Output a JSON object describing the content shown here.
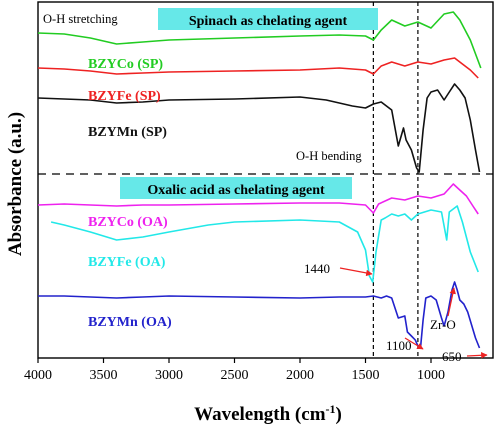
{
  "chart_data": {
    "type": "line",
    "xlabel": "Wavelength (cm",
    "xlabel_sup": "-1",
    "xlabel_close": ")",
    "ylabel": "Absorbance (a.u.)",
    "x_ticks": [
      4000,
      3500,
      3000,
      2500,
      2000,
      1500,
      1000
    ],
    "xlim": [
      4000,
      600
    ],
    "x_reversed": true,
    "panels": [
      {
        "title": "Spinach as chelating agent",
        "title_bg": "#66e8e8",
        "series": [
          {
            "name": "BZYCo (SP)",
            "color": "#22cc22",
            "points": [
              [
                4000,
                33
              ],
              [
                3800,
                34
              ],
              [
                3600,
                38
              ],
              [
                3400,
                44
              ],
              [
                3200,
                42
              ],
              [
                3000,
                40
              ],
              [
                2500,
                38
              ],
              [
                2000,
                36
              ],
              [
                1700,
                35
              ],
              [
                1500,
                36
              ],
              [
                1440,
                40
              ],
              [
                1380,
                30
              ],
              [
                1300,
                20
              ],
              [
                1200,
                26
              ],
              [
                1100,
                22
              ],
              [
                1000,
                28
              ],
              [
                900,
                14
              ],
              [
                830,
                12
              ],
              [
                780,
                20
              ],
              [
                700,
                40
              ],
              [
                620,
                68
              ]
            ]
          },
          {
            "name": "BZYFe (SP)",
            "color": "#ee2222",
            "points": [
              [
                4000,
                68
              ],
              [
                3800,
                69
              ],
              [
                3600,
                71
              ],
              [
                3400,
                74
              ],
              [
                3200,
                73
              ],
              [
                3000,
                72
              ],
              [
                2500,
                71
              ],
              [
                2000,
                70
              ],
              [
                1700,
                68
              ],
              [
                1500,
                70
              ],
              [
                1440,
                74
              ],
              [
                1380,
                66
              ],
              [
                1300,
                62
              ],
              [
                1200,
                66
              ],
              [
                1100,
                62
              ],
              [
                1000,
                64
              ],
              [
                900,
                60
              ],
              [
                820,
                58
              ],
              [
                760,
                64
              ],
              [
                700,
                70
              ],
              [
                640,
                78
              ]
            ]
          },
          {
            "name": "BZYMn (SP)",
            "color": "#111111",
            "points": [
              [
                4000,
                98
              ],
              [
                3800,
                99
              ],
              [
                3600,
                100
              ],
              [
                3400,
                103
              ],
              [
                3200,
                102
              ],
              [
                3000,
                100
              ],
              [
                2500,
                99
              ],
              [
                2000,
                97
              ],
              [
                1800,
                100
              ],
              [
                1600,
                106
              ],
              [
                1500,
                108
              ],
              [
                1440,
                104
              ],
              [
                1380,
                102
              ],
              [
                1300,
                110
              ],
              [
                1250,
                146
              ],
              [
                1210,
                128
              ],
              [
                1190,
                140
              ],
              [
                1150,
                150
              ],
              [
                1110,
                168
              ],
              [
                1090,
                172
              ],
              [
                1060,
                130
              ],
              [
                1030,
                98
              ],
              [
                1000,
                92
              ],
              [
                950,
                90
              ],
              [
                900,
                100
              ],
              [
                860,
                92
              ],
              [
                820,
                84
              ],
              [
                780,
                90
              ],
              [
                740,
                98
              ],
              [
                700,
                120
              ],
              [
                660,
                150
              ],
              [
                630,
                172
              ]
            ]
          }
        ]
      },
      {
        "title": "Oxalic acid as chelating agent",
        "title_bg": "#66e8e8",
        "series": [
          {
            "name": "BZYCo (OA)",
            "color": "#ee22ee",
            "points": [
              [
                4000,
                205
              ],
              [
                3800,
                204
              ],
              [
                3600,
                205
              ],
              [
                3400,
                206
              ],
              [
                3200,
                205
              ],
              [
                3000,
                205
              ],
              [
                2500,
                204
              ],
              [
                2000,
                203
              ],
              [
                1700,
                203
              ],
              [
                1500,
                205
              ],
              [
                1440,
                213
              ],
              [
                1400,
                204
              ],
              [
                1300,
                198
              ],
              [
                1200,
                200
              ],
              [
                1100,
                196
              ],
              [
                1000,
                198
              ],
              [
                900,
                194
              ],
              [
                830,
                184
              ],
              [
                780,
                190
              ],
              [
                730,
                196
              ],
              [
                680,
                206
              ],
              [
                640,
                214
              ]
            ]
          },
          {
            "name": "BZYFe (OA)",
            "color": "#22e8e8",
            "points": [
              [
                3900,
                222
              ],
              [
                3800,
                225
              ],
              [
                3600,
                232
              ],
              [
                3400,
                240
              ],
              [
                3200,
                237
              ],
              [
                3000,
                232
              ],
              [
                2700,
                225
              ],
              [
                2500,
                222
              ],
              [
                2000,
                220
              ],
              [
                1700,
                222
              ],
              [
                1560,
                232
              ],
              [
                1500,
                250
              ],
              [
                1470,
                276
              ],
              [
                1445,
                282
              ],
              [
                1420,
                252
              ],
              [
                1380,
                220
              ],
              [
                1350,
                218
              ],
              [
                1300,
                214
              ],
              [
                1250,
                216
              ],
              [
                1200,
                214
              ],
              [
                1150,
                220
              ],
              [
                1100,
                214
              ],
              [
                1000,
                210
              ],
              [
                920,
                212
              ],
              [
                880,
                240
              ],
              [
                860,
                212
              ],
              [
                800,
                206
              ],
              [
                760,
                222
              ],
              [
                700,
                252
              ],
              [
                640,
                272
              ]
            ]
          },
          {
            "name": "BZYMn (OA)",
            "color": "#2222cc",
            "points": [
              [
                4000,
                296
              ],
              [
                3800,
                296
              ],
              [
                3600,
                297
              ],
              [
                3400,
                298
              ],
              [
                3200,
                297
              ],
              [
                3000,
                296
              ],
              [
                2500,
                297
              ],
              [
                2000,
                298
              ],
              [
                1700,
                297
              ],
              [
                1500,
                297
              ],
              [
                1440,
                296
              ],
              [
                1380,
                298
              ],
              [
                1340,
                296
              ],
              [
                1300,
                298
              ],
              [
                1250,
                318
              ],
              [
                1200,
                316
              ],
              [
                1180,
                332
              ],
              [
                1150,
                336
              ],
              [
                1120,
                340
              ],
              [
                1100,
                346
              ],
              [
                1080,
                348
              ],
              [
                1060,
                320
              ],
              [
                1040,
                298
              ],
              [
                1000,
                296
              ],
              [
                960,
                300
              ],
              [
                920,
                318
              ],
              [
                900,
                326
              ],
              [
                870,
                312
              ],
              [
                840,
                290
              ],
              [
                820,
                282
              ],
              [
                800,
                290
              ],
              [
                780,
                300
              ],
              [
                750,
                304
              ],
              [
                720,
                312
              ],
              [
                690,
                325
              ],
              [
                660,
                338
              ],
              [
                630,
                348
              ]
            ]
          }
        ]
      }
    ],
    "annotations": {
      "oh_stretching": "O-H stretching",
      "oh_bending": "O-H bending",
      "peak_1440": "1440",
      "peak_1100": "1100",
      "peak_650": "650",
      "zr_o": "Zr-O"
    },
    "vlines": [
      1440,
      1100
    ]
  }
}
